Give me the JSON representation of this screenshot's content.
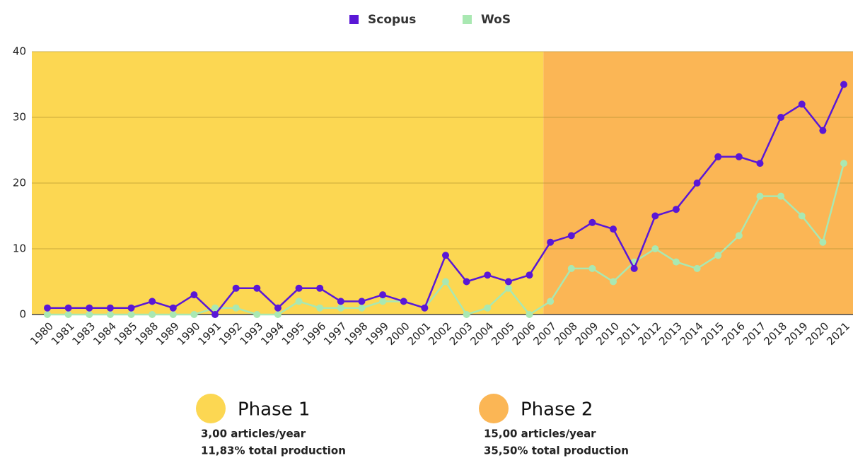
{
  "chart_data": {
    "type": "line",
    "categories": [
      "1980",
      "1981",
      "1983",
      "1984",
      "1985",
      "1988",
      "1989",
      "1990",
      "1991",
      "1992",
      "1993",
      "1994",
      "1995",
      "1996",
      "1997",
      "1998",
      "1999",
      "2000",
      "2001",
      "2002",
      "2003",
      "2004",
      "2005",
      "2006",
      "2007",
      "2008",
      "2009",
      "2010",
      "2011",
      "2012",
      "2013",
      "2014",
      "2015",
      "2016",
      "2017",
      "2018",
      "2019",
      "2020",
      "2021"
    ],
    "series": [
      {
        "name": "Scopus",
        "color": "#5a17d6",
        "values": [
          1,
          1,
          1,
          1,
          1,
          2,
          1,
          3,
          0,
          4,
          4,
          1,
          4,
          4,
          2,
          2,
          3,
          2,
          1,
          9,
          5,
          6,
          5,
          6,
          11,
          12,
          14,
          13,
          7,
          15,
          16,
          20,
          24,
          24,
          23,
          30,
          32,
          28,
          35
        ]
      },
      {
        "name": "WoS",
        "color": "#a9e8b2",
        "values": [
          0,
          0,
          0,
          0,
          0,
          0,
          0,
          0,
          1,
          1,
          0,
          0,
          2,
          1,
          1,
          1,
          2,
          2,
          1,
          5,
          0,
          1,
          4,
          0,
          2,
          7,
          7,
          5,
          8,
          10,
          8,
          7,
          9,
          12,
          18,
          18,
          15,
          11,
          23
        ]
      }
    ],
    "ylim": [
      0,
      40
    ],
    "yticks": [
      0,
      10,
      20,
      30,
      40
    ],
    "grid": true,
    "legend": "top",
    "phases": [
      {
        "name": "Phase 1",
        "start": "1980",
        "color": "#fcd752",
        "rate": "3,00 articles/year",
        "share": "11,83% total production"
      },
      {
        "name": "Phase 2",
        "start": "2007",
        "color": "#fbb655",
        "rate": "15,00 articles/year",
        "share": "35,50% total production"
      }
    ]
  }
}
